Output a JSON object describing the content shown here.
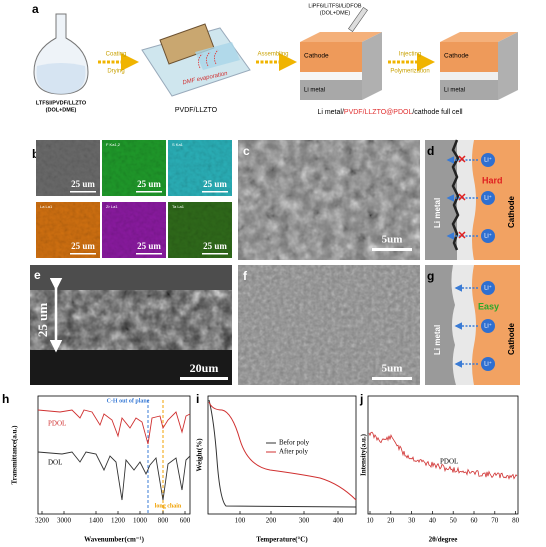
{
  "panel_labels": [
    "a",
    "b",
    "c",
    "d",
    "e",
    "f",
    "g",
    "h",
    "i",
    "j"
  ],
  "a": {
    "flask_label": "LTFSI/PVDF/LLZTO",
    "flask_solvent": "(DOL+DME)",
    "step1_top": "Coating",
    "step1_bottom": "Drying",
    "evaporation": "DMF evaporation",
    "film_label": "PVDF/LLZTO",
    "step2": "Assembling",
    "electrolyte_line1": "LiPF6/LiTFSI/LiDFOB",
    "electrolyte_line2": "(DOL+DME)",
    "cell1_cathode": "Cathode",
    "cell1_anode": "Li metal",
    "step3_top": "Injecting",
    "step3_bottom": "Polymerization",
    "cell2_cathode": "Cathode",
    "cell2_anode": "Li metal",
    "caption_part1": "Li metal/",
    "caption_part2": "PVDF/LLZTO@PDOL",
    "caption_part3": "/cathode full cell"
  },
  "b": {
    "maps": [
      {
        "scale": "25 um"
      },
      {
        "element": "F Ka1,2",
        "scale": "25 um"
      },
      {
        "element": "S Ka1",
        "scale": "25 um"
      },
      {
        "element": "La La1",
        "scale": "25 um"
      },
      {
        "element": "Zr La1",
        "scale": "25 um"
      },
      {
        "element": "Ta La1",
        "scale": "25 um"
      }
    ]
  },
  "c": {
    "scale": "5um"
  },
  "d": {
    "ion_labels": [
      "Li⁺",
      "Li⁺",
      "Li⁺"
    ],
    "interface": "Hard",
    "anode": "Li metal",
    "cathode": "Cathode"
  },
  "e": {
    "thickness": "25 um",
    "scale": "20um"
  },
  "f": {
    "scale": "5um"
  },
  "g": {
    "ion_labels": [
      "Li⁺",
      "Li⁺",
      "Li⁺"
    ],
    "interface": "Easy",
    "anode": "Li metal",
    "cathode": "Cathode"
  },
  "h": {
    "y_label": "Transmittance(a.u.)",
    "x_label": "Wavenumber(cm⁻¹)",
    "x_ticks": [
      "3200",
      "3000",
      "1400",
      "1200",
      "1000",
      "800",
      "600"
    ],
    "series_labels": [
      "PDOL",
      "DOL"
    ],
    "annotation": "C-H out of plane",
    "annotation2": "long chain"
  },
  "i": {
    "y_label": "Weight(%)",
    "x_label": "Temperature(°C)",
    "x_ticks": [
      "100",
      "200",
      "300",
      "400"
    ],
    "legend": [
      "Befor poly",
      "After poly"
    ]
  },
  "j": {
    "y_label": "Intensity(a.u.)",
    "x_label": "2θ/degree",
    "x_ticks": [
      "10",
      "20",
      "30",
      "40",
      "50",
      "60",
      "70",
      "80"
    ],
    "series_label": "PDOL"
  }
}
